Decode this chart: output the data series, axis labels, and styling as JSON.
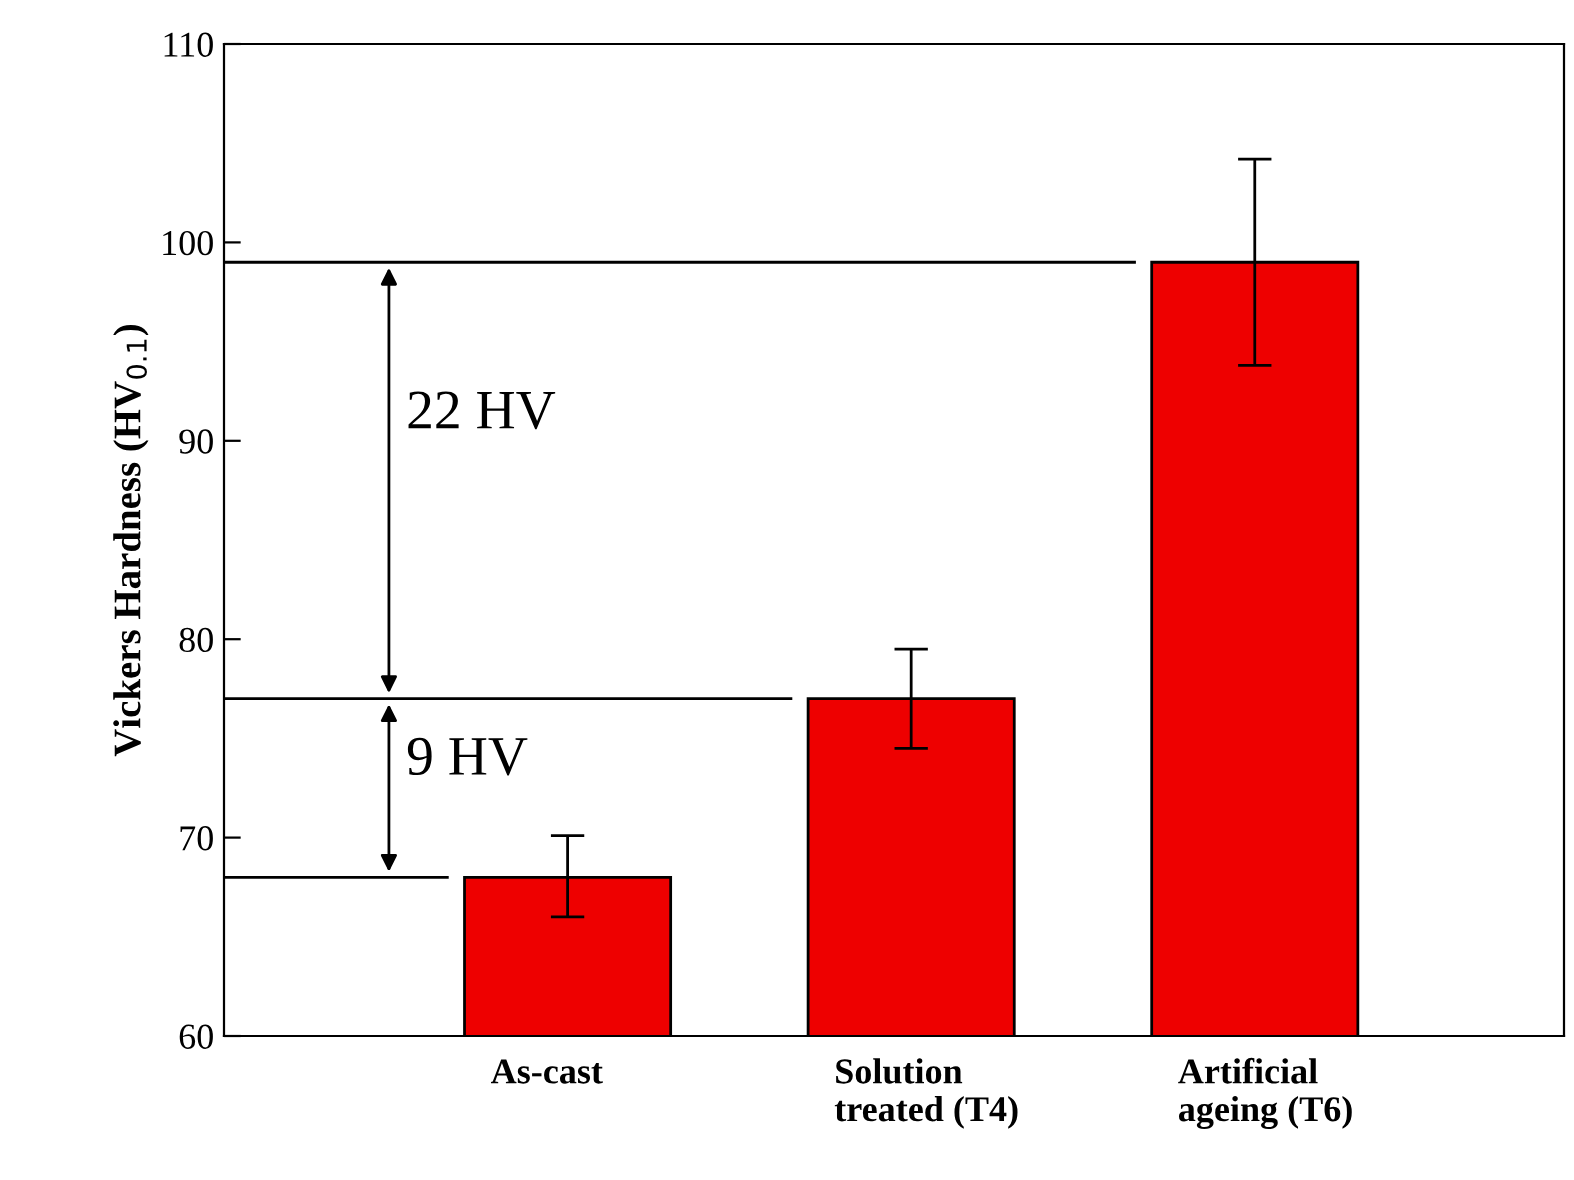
{
  "chart_data": {
    "type": "bar",
    "ylabel": "Vickers Hardness (HV$_{0.1}$)",
    "categories": [
      "As-cast",
      "Solution\ntreated (T4)",
      "Artificial\nageing (T6)"
    ],
    "values": [
      68,
      77,
      99
    ],
    "color": "#ee0000",
    "errors": [
      [
        66,
        70.1
      ],
      [
        74.5,
        79.5
      ],
      [
        93.8,
        104.2
      ]
    ],
    "ylim": [
      60,
      110
    ],
    "yticks": [
      60,
      70,
      80,
      90,
      100,
      110
    ],
    "grid": false,
    "ref_lines": [
      {
        "axis": "y",
        "value": 68
      },
      {
        "axis": "y",
        "value": 77
      },
      {
        "axis": "y",
        "value": 99
      }
    ],
    "annotations": [
      "22 HV",
      "9 HV"
    ]
  }
}
